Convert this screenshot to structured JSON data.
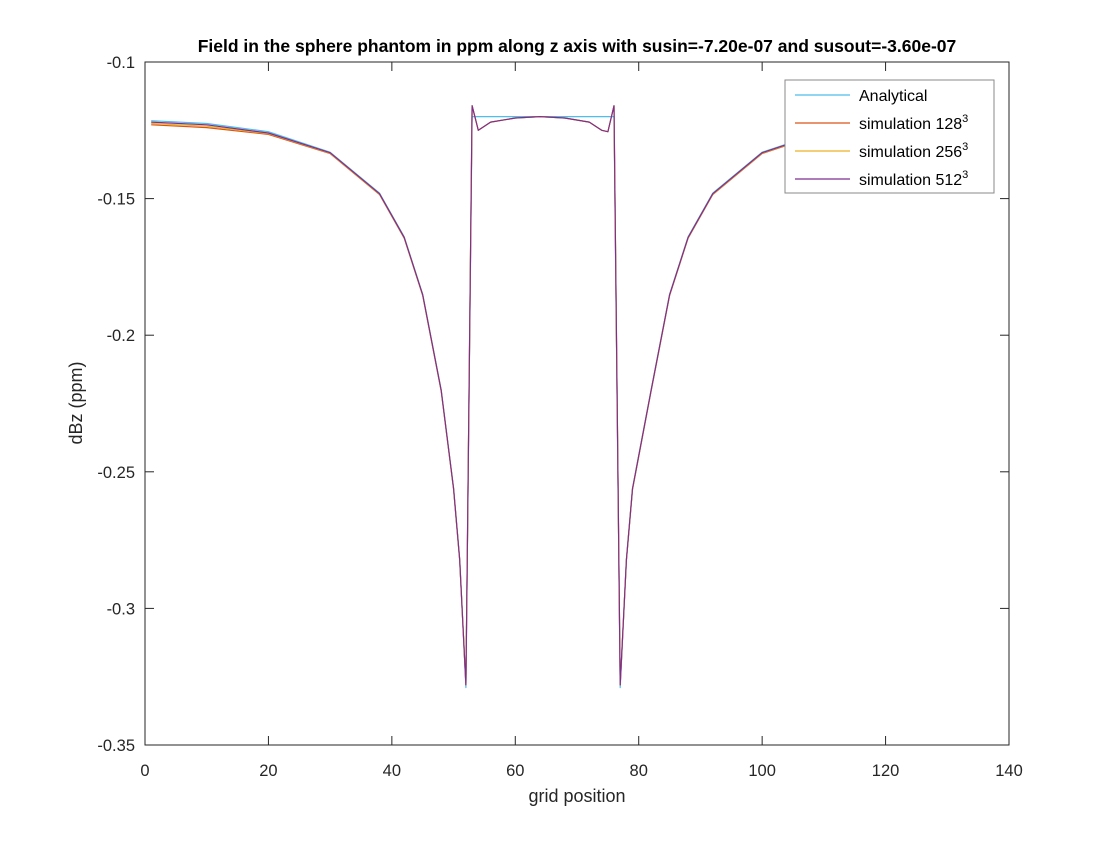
{
  "chart_data": {
    "type": "line",
    "title": "Field in the sphere phantom in ppm along z axis with susin=-7.20e-07 and susout=-3.60e-07",
    "xlabel": "grid position",
    "ylabel": "dBz (ppm)",
    "xlim": [
      0,
      140
    ],
    "ylim": [
      -0.35,
      -0.1
    ],
    "xticks": [
      0,
      20,
      40,
      60,
      80,
      100,
      120,
      140
    ],
    "yticks": [
      -0.35,
      -0.3,
      -0.25,
      -0.2,
      -0.15,
      -0.1
    ],
    "xtick_labels": [
      "0",
      "20",
      "40",
      "60",
      "80",
      "100",
      "120",
      "140"
    ],
    "ytick_labels": [
      "-0.35",
      "-0.3",
      "-0.25",
      "-0.2",
      "-0.15",
      "-0.1"
    ],
    "grid": false,
    "legend_position": "top-right",
    "series": [
      {
        "name": "Analytical",
        "legend_base": "Analytical",
        "legend_sup": "",
        "color": "#4DBEEE",
        "x": [
          1,
          10,
          20,
          30,
          38,
          42,
          45,
          48,
          50,
          51,
          52,
          53,
          55,
          60,
          64,
          70,
          75,
          76,
          77,
          78,
          79,
          82,
          85,
          88,
          92,
          100,
          110,
          115
        ],
        "y": [
          -0.1215,
          -0.1225,
          -0.1255,
          -0.133,
          -0.148,
          -0.164,
          -0.185,
          -0.22,
          -0.256,
          -0.282,
          -0.329,
          -0.12,
          -0.12,
          -0.12,
          -0.12,
          -0.12,
          -0.12,
          -0.12,
          -0.329,
          -0.282,
          -0.256,
          -0.22,
          -0.185,
          -0.164,
          -0.148,
          -0.133,
          -0.1255,
          -0.1235
        ]
      },
      {
        "name": "simulation 128^3",
        "legend_base": "simulation 128",
        "legend_sup": "3",
        "color": "#D95319",
        "x": [
          1,
          10,
          20,
          30,
          38,
          42,
          45,
          48,
          50,
          51,
          52,
          53,
          54,
          56,
          60,
          64,
          68,
          72,
          74,
          75,
          76,
          77,
          78,
          79,
          82,
          85,
          88,
          92,
          100,
          110,
          115
        ],
        "y": [
          -0.123,
          -0.124,
          -0.1265,
          -0.1335,
          -0.1485,
          -0.1645,
          -0.1855,
          -0.2205,
          -0.2565,
          -0.2825,
          -0.328,
          -0.116,
          -0.125,
          -0.122,
          -0.1205,
          -0.12,
          -0.1205,
          -0.122,
          -0.125,
          -0.1255,
          -0.116,
          -0.328,
          -0.2825,
          -0.2565,
          -0.2205,
          -0.1855,
          -0.1645,
          -0.1485,
          -0.1335,
          -0.126,
          -0.124
        ]
      },
      {
        "name": "simulation 256^3",
        "legend_base": "simulation 256",
        "legend_sup": "3",
        "color": "#EDB120",
        "x": [
          1,
          10,
          20,
          30,
          38,
          42,
          45,
          48,
          50,
          51,
          52,
          53,
          54,
          56,
          60,
          64,
          68,
          72,
          74,
          75,
          76,
          77,
          78,
          79,
          82,
          85,
          88,
          92,
          100,
          110,
          115
        ],
        "y": [
          -0.1225,
          -0.1235,
          -0.1262,
          -0.1333,
          -0.1483,
          -0.1643,
          -0.1853,
          -0.2203,
          -0.2563,
          -0.2823,
          -0.328,
          -0.116,
          -0.125,
          -0.122,
          -0.1205,
          -0.12,
          -0.1205,
          -0.122,
          -0.125,
          -0.1255,
          -0.116,
          -0.328,
          -0.2823,
          -0.2563,
          -0.2203,
          -0.1853,
          -0.1643,
          -0.1483,
          -0.1333,
          -0.1258,
          -0.1238
        ]
      },
      {
        "name": "simulation 512^3",
        "legend_base": "simulation 512",
        "legend_sup": "3",
        "color": "#7E2F8E",
        "x": [
          1,
          10,
          20,
          30,
          38,
          42,
          45,
          48,
          50,
          51,
          52,
          53,
          54,
          56,
          60,
          64,
          68,
          72,
          74,
          75,
          76,
          77,
          78,
          79,
          82,
          85,
          88,
          92,
          100,
          110,
          115
        ],
        "y": [
          -0.122,
          -0.123,
          -0.126,
          -0.1332,
          -0.1482,
          -0.1642,
          -0.1852,
          -0.2202,
          -0.2562,
          -0.2822,
          -0.328,
          -0.116,
          -0.125,
          -0.122,
          -0.1205,
          -0.12,
          -0.1205,
          -0.122,
          -0.125,
          -0.1255,
          -0.116,
          -0.328,
          -0.2822,
          -0.2562,
          -0.2202,
          -0.1852,
          -0.1642,
          -0.1482,
          -0.1332,
          -0.1257,
          -0.1237
        ]
      }
    ]
  }
}
